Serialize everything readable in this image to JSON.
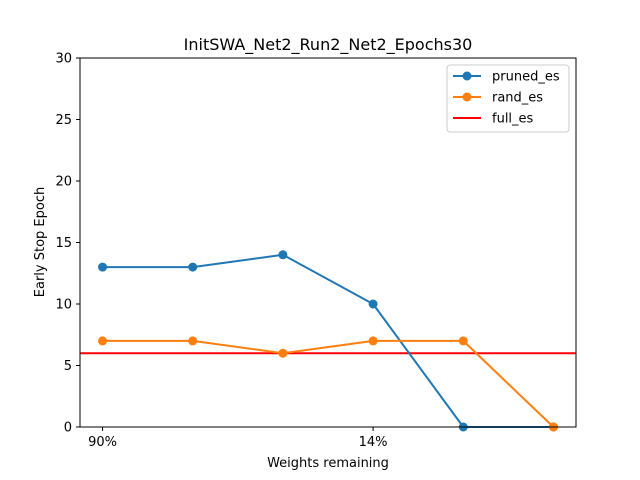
{
  "chart_data": {
    "type": "line",
    "title": "InitSWA_Net2_Run2_Net2_Epochs30",
    "xlabel": "Weights remaining",
    "ylabel": "Early Stop Epoch",
    "x": [
      0,
      1,
      2,
      3,
      4,
      5
    ],
    "xticks": [
      {
        "x": 0,
        "label": "90%"
      },
      {
        "x": 3,
        "label": "14%"
      }
    ],
    "yticks": [
      0,
      5,
      10,
      15,
      20,
      25,
      30
    ],
    "xlim": [
      -0.25,
      5.25
    ],
    "ylim": [
      0,
      30
    ],
    "grid": false,
    "legend_position": "top-right",
    "series": [
      {
        "name": "pruned_es",
        "values": [
          13,
          13,
          14,
          10,
          0,
          0
        ],
        "color": "#1f77b4",
        "marker": "circle"
      },
      {
        "name": "rand_es",
        "values": [
          7,
          7,
          6,
          7,
          7,
          0
        ],
        "color": "#ff7f0e",
        "marker": "circle"
      }
    ],
    "hlines": [
      {
        "name": "full_es",
        "y": 6,
        "color": "#ff0000"
      }
    ]
  }
}
